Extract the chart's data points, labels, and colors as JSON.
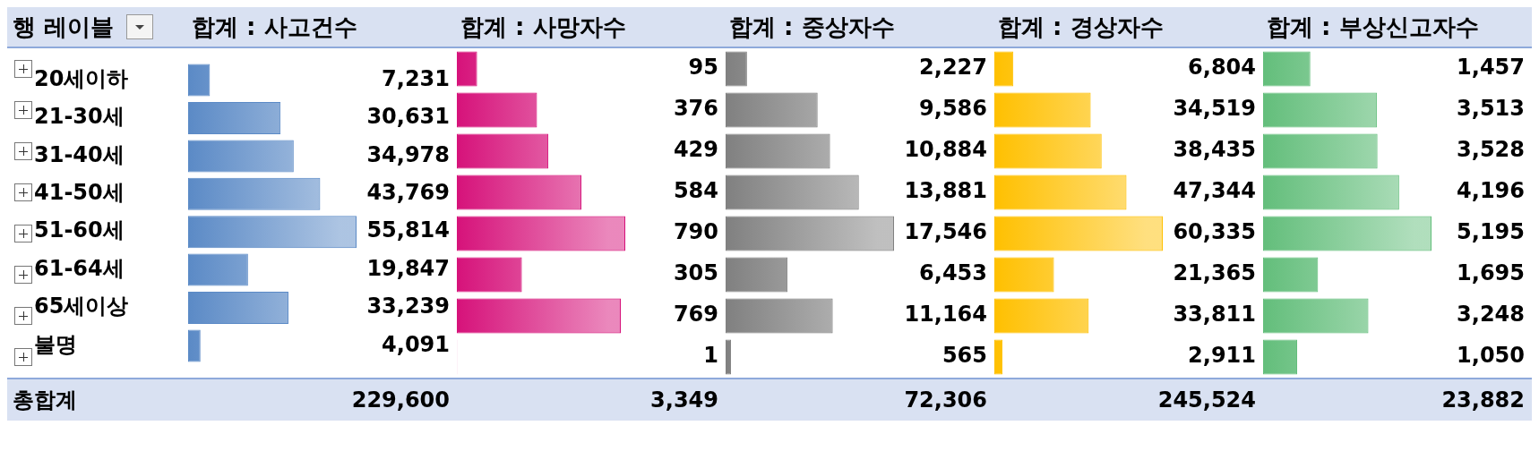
{
  "chart_data": [
    {
      "type": "bar",
      "orientation": "horizontal",
      "title": "합계 : 사고건수",
      "ylabel": "행 레이블",
      "categories": [
        "20세이하",
        "21-30세",
        "31-40세",
        "41-50세",
        "51-60세",
        "61-64세",
        "65세이상",
        "불명"
      ],
      "values": [
        7231,
        30631,
        34978,
        43769,
        55814,
        19847,
        33239,
        4091
      ],
      "value_labels": [
        "7,231",
        "30,631",
        "34,978",
        "43,769",
        "55,814",
        "19,847",
        "33,239",
        "4,091"
      ],
      "color": "#5b8ac6",
      "tick_labels": "y",
      "annotations": [
        "총합계",
        "229,600"
      ]
    },
    {
      "type": "bar",
      "orientation": "horizontal",
      "title": "합계 : 사망자수",
      "values": [
        95,
        376,
        429,
        584,
        790,
        305,
        769,
        1
      ],
      "value_labels": [
        "95",
        "376",
        "429",
        "584",
        "790",
        "305",
        "769",
        "1"
      ],
      "color": "#d6127a",
      "tick_labels": false,
      "annotations": [
        "3,349"
      ]
    },
    {
      "type": "bar",
      "orientation": "horizontal",
      "title": "합계 : 중상자수",
      "values": [
        2227,
        9586,
        10884,
        13881,
        17546,
        6453,
        11164,
        565
      ],
      "value_labels": [
        "2,227",
        "9,586",
        "10,884",
        "13,881",
        "17,546",
        "6,453",
        "11,164",
        "565"
      ],
      "color": "#808080",
      "tick_labels": false,
      "annotations": [
        "72,306"
      ]
    },
    {
      "type": "bar",
      "orientation": "horizontal",
      "title": "합계 : 경상자수",
      "values": [
        6804,
        34519,
        38435,
        47344,
        60335,
        21365,
        33811,
        2911
      ],
      "value_labels": [
        "6,804",
        "34,519",
        "38,435",
        "47,344",
        "60,335",
        "21,365",
        "33,811",
        "2,911"
      ],
      "color": "#ffc000",
      "tick_labels": false,
      "annotations": [
        "245,524"
      ]
    },
    {
      "type": "bar",
      "orientation": "horizontal",
      "title": "합계 : 부상신고자수",
      "values": [
        1457,
        3513,
        3528,
        4196,
        5195,
        1695,
        3248,
        1050
      ],
      "value_labels": [
        "1,457",
        "3,513",
        "3,528",
        "4,196",
        "5,195",
        "1,695",
        "3,248",
        "1,050"
      ],
      "color": "#63be7b",
      "tick_labels": false,
      "annotations": [
        "23,882"
      ]
    }
  ]
}
